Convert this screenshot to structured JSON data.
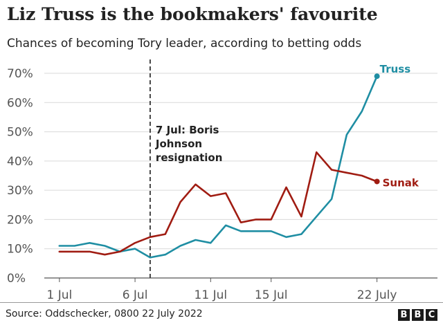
{
  "title": "Liz Truss is the bookmakers' favourite",
  "subtitle": "Chances of becoming Tory leader, according to betting odds",
  "source": "Source: Oddschecker, 0800 22 July 2022",
  "logo": [
    "B",
    "B",
    "C"
  ],
  "colors": {
    "truss": "#1f8ea3",
    "sunak": "#a01c12",
    "grid": "#d9d9d9",
    "annotation": "#333333"
  },
  "chart_data": {
    "type": "line",
    "ylim": [
      0,
      70
    ],
    "yticks": [
      0,
      10,
      20,
      30,
      40,
      50,
      60,
      70
    ],
    "ytick_labels": [
      "0%",
      "10%",
      "20%",
      "30%",
      "40%",
      "50%",
      "60%",
      "70%"
    ],
    "xlim": [
      1,
      27
    ],
    "xticks": [
      {
        "x": 2,
        "label": "1 Jul"
      },
      {
        "x": 7,
        "label": "6 Jul"
      },
      {
        "x": 12,
        "label": "11 Jul"
      },
      {
        "x": 16,
        "label": "15 Jul"
      },
      {
        "x": 23,
        "label": "22 July"
      }
    ],
    "series": [
      {
        "name": "Truss",
        "color": "#1f8ea3",
        "points": [
          [
            2,
            11
          ],
          [
            3,
            11
          ],
          [
            4,
            12
          ],
          [
            5,
            11
          ],
          [
            6,
            9
          ],
          [
            7,
            10
          ],
          [
            8,
            7
          ],
          [
            9,
            8
          ],
          [
            10,
            11
          ],
          [
            11,
            13
          ],
          [
            12,
            12
          ],
          [
            13,
            18
          ],
          [
            14,
            16
          ],
          [
            15,
            16
          ],
          [
            16,
            16
          ],
          [
            17,
            14
          ],
          [
            18,
            15
          ],
          [
            19,
            21
          ],
          [
            20,
            27
          ],
          [
            21,
            49
          ],
          [
            22,
            57
          ],
          [
            23,
            69
          ]
        ]
      },
      {
        "name": "Sunak",
        "color": "#a01c12",
        "points": [
          [
            2,
            9
          ],
          [
            3,
            9
          ],
          [
            4,
            9
          ],
          [
            5,
            8
          ],
          [
            6,
            9
          ],
          [
            7,
            12
          ],
          [
            8,
            14
          ],
          [
            9,
            15
          ],
          [
            10,
            26
          ],
          [
            11,
            32
          ],
          [
            12,
            28
          ],
          [
            13,
            29
          ],
          [
            14,
            19
          ],
          [
            15,
            20
          ],
          [
            16,
            20
          ],
          [
            17,
            31
          ],
          [
            18,
            21
          ],
          [
            19,
            43
          ],
          [
            20,
            37
          ],
          [
            21,
            36
          ],
          [
            22,
            35
          ],
          [
            23,
            33
          ]
        ]
      }
    ],
    "annotation": {
      "x": 8,
      "lines": [
        "7 Jul: Boris",
        "Johnson",
        "resignation"
      ]
    }
  }
}
